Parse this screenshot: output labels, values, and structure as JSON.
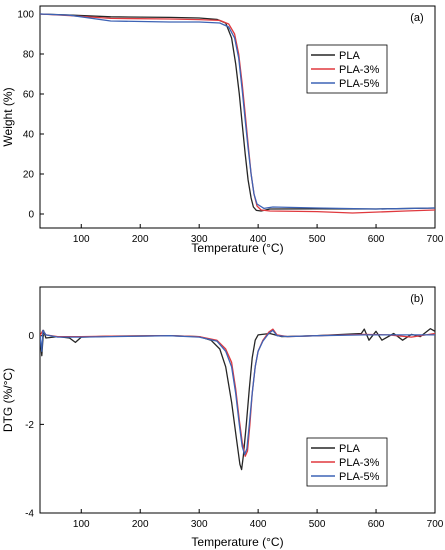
{
  "colors": {
    "PLA": "#262626",
    "PLA-3%": "#e0393e",
    "PLA-5%": "#3d63b5"
  },
  "chart_data": [
    {
      "type": "line",
      "panel_label": "(a)",
      "xlabel": "Temperature (°C)",
      "ylabel": "Weight (%)",
      "xlim": [
        30,
        700
      ],
      "ylim": [
        -7,
        104
      ],
      "xticks": [
        100,
        200,
        300,
        400,
        500,
        600,
        700
      ],
      "yticks": [
        0,
        20,
        40,
        60,
        80,
        100
      ],
      "legend_position": "upper-right",
      "grid": false,
      "series": [
        {
          "name": "PLA",
          "color": "#262626",
          "points": [
            [
              30,
              100
            ],
            [
              80,
              99.5
            ],
            [
              150,
              98.6
            ],
            [
              250,
              98.3
            ],
            [
              300,
              98.0
            ],
            [
              330,
              97.3
            ],
            [
              345,
              95.5
            ],
            [
              355,
              88
            ],
            [
              362,
              75
            ],
            [
              368,
              60
            ],
            [
              373,
              45
            ],
            [
              378,
              30
            ],
            [
              383,
              17
            ],
            [
              388,
              8
            ],
            [
              392,
              3.5
            ],
            [
              397,
              1.8
            ],
            [
              405,
              1.5
            ],
            [
              420,
              2.5
            ],
            [
              500,
              2.6
            ],
            [
              600,
              2.5
            ],
            [
              700,
              3.0
            ]
          ]
        },
        {
          "name": "PLA-3%",
          "color": "#e0393e",
          "points": [
            [
              30,
              100
            ],
            [
              80,
              99.2
            ],
            [
              150,
              97.8
            ],
            [
              250,
              97.5
            ],
            [
              300,
              97.2
            ],
            [
              335,
              96.8
            ],
            [
              350,
              95
            ],
            [
              360,
              90
            ],
            [
              367,
              80
            ],
            [
              373,
              65
            ],
            [
              378,
              50
            ],
            [
              383,
              35
            ],
            [
              388,
              20
            ],
            [
              393,
              10
            ],
            [
              398,
              4
            ],
            [
              405,
              2
            ],
            [
              420,
              1.5
            ],
            [
              500,
              1.2
            ],
            [
              560,
              0.5
            ],
            [
              650,
              1.5
            ],
            [
              700,
              2.0
            ]
          ]
        },
        {
          "name": "PLA-5%",
          "color": "#3d63b5",
          "points": [
            [
              30,
              100
            ],
            [
              80,
              99.4
            ],
            [
              150,
              96.5
            ],
            [
              250,
              96.0
            ],
            [
              300,
              96.0
            ],
            [
              335,
              95.5
            ],
            [
              350,
              93.5
            ],
            [
              360,
              88
            ],
            [
              367,
              78
            ],
            [
              373,
              62
            ],
            [
              378,
              47
            ],
            [
              383,
              33
            ],
            [
              388,
              20
            ],
            [
              393,
              10
            ],
            [
              398,
              5
            ],
            [
              410,
              2.8
            ],
            [
              425,
              3.5
            ],
            [
              500,
              3.0
            ],
            [
              600,
              2.5
            ],
            [
              700,
              3.0
            ]
          ]
        }
      ]
    },
    {
      "type": "line",
      "panel_label": "(b)",
      "xlabel": "Temperature (°C)",
      "ylabel": "DTG (%/°C)",
      "xlim": [
        30,
        700
      ],
      "ylim": [
        -4,
        1.1
      ],
      "xticks": [
        100,
        200,
        300,
        400,
        500,
        600,
        700
      ],
      "yticks": [
        0,
        -2,
        -4
      ],
      "legend_position": "lower-right",
      "grid": false,
      "series": [
        {
          "name": "PLA",
          "color": "#262626",
          "points": [
            [
              30,
              0
            ],
            [
              33,
              -0.45
            ],
            [
              36,
              0.12
            ],
            [
              40,
              -0.05
            ],
            [
              60,
              -0.02
            ],
            [
              80,
              -0.05
            ],
            [
              90,
              -0.15
            ],
            [
              100,
              -0.03
            ],
            [
              150,
              -0.01
            ],
            [
              250,
              0
            ],
            [
              300,
              -0.02
            ],
            [
              320,
              -0.1
            ],
            [
              335,
              -0.3
            ],
            [
              345,
              -0.7
            ],
            [
              355,
              -1.5
            ],
            [
              363,
              -2.3
            ],
            [
              369,
              -2.9
            ],
            [
              372,
              -3.02
            ],
            [
              375,
              -2.7
            ],
            [
              380,
              -2.0
            ],
            [
              385,
              -1.2
            ],
            [
              390,
              -0.5
            ],
            [
              395,
              -0.1
            ],
            [
              400,
              0.02
            ],
            [
              420,
              0.05
            ],
            [
              440,
              -0.02
            ],
            [
              500,
              0
            ],
            [
              575,
              0.05
            ],
            [
              580,
              0.15
            ],
            [
              588,
              -0.1
            ],
            [
              600,
              0.1
            ],
            [
              610,
              -0.1
            ],
            [
              630,
              0.05
            ],
            [
              645,
              -0.1
            ],
            [
              660,
              0.03
            ],
            [
              675,
              -0.02
            ],
            [
              692,
              0.16
            ],
            [
              700,
              0.1
            ]
          ]
        },
        {
          "name": "PLA-3%",
          "color": "#e0393e",
          "points": [
            [
              30,
              0
            ],
            [
              35,
              0.12
            ],
            [
              40,
              0.02
            ],
            [
              60,
              -0.02
            ],
            [
              100,
              -0.02
            ],
            [
              150,
              -0.01
            ],
            [
              250,
              0
            ],
            [
              300,
              -0.02
            ],
            [
              330,
              -0.1
            ],
            [
              345,
              -0.3
            ],
            [
              355,
              -0.6
            ],
            [
              362,
              -1.2
            ],
            [
              368,
              -1.9
            ],
            [
              373,
              -2.4
            ],
            [
              378,
              -2.72
            ],
            [
              382,
              -2.6
            ],
            [
              386,
              -2.0
            ],
            [
              390,
              -1.3
            ],
            [
              395,
              -0.7
            ],
            [
              400,
              -0.35
            ],
            [
              408,
              -0.1
            ],
            [
              418,
              0.08
            ],
            [
              425,
              0.15
            ],
            [
              432,
              0.02
            ],
            [
              450,
              -0.02
            ],
            [
              500,
              0
            ],
            [
              580,
              0.03
            ],
            [
              620,
              0.02
            ],
            [
              660,
              -0.03
            ],
            [
              700,
              0.05
            ]
          ]
        },
        {
          "name": "PLA-5%",
          "color": "#3d63b5",
          "points": [
            [
              30,
              0
            ],
            [
              33,
              -0.35
            ],
            [
              35,
              0.12
            ],
            [
              40,
              0.02
            ],
            [
              60,
              -0.03
            ],
            [
              100,
              -0.03
            ],
            [
              150,
              -0.02
            ],
            [
              250,
              0
            ],
            [
              300,
              -0.03
            ],
            [
              330,
              -0.12
            ],
            [
              345,
              -0.35
            ],
            [
              355,
              -0.7
            ],
            [
              362,
              -1.3
            ],
            [
              368,
              -2.0
            ],
            [
              373,
              -2.5
            ],
            [
              377,
              -2.68
            ],
            [
              381,
              -2.55
            ],
            [
              385,
              -2.0
            ],
            [
              390,
              -1.3
            ],
            [
              395,
              -0.7
            ],
            [
              400,
              -0.35
            ],
            [
              408,
              -0.12
            ],
            [
              418,
              0.05
            ],
            [
              425,
              0.12
            ],
            [
              432,
              0.0
            ],
            [
              450,
              -0.02
            ],
            [
              500,
              0
            ],
            [
              580,
              0.02
            ],
            [
              640,
              0.02
            ],
            [
              700,
              0.02
            ]
          ]
        }
      ]
    }
  ]
}
